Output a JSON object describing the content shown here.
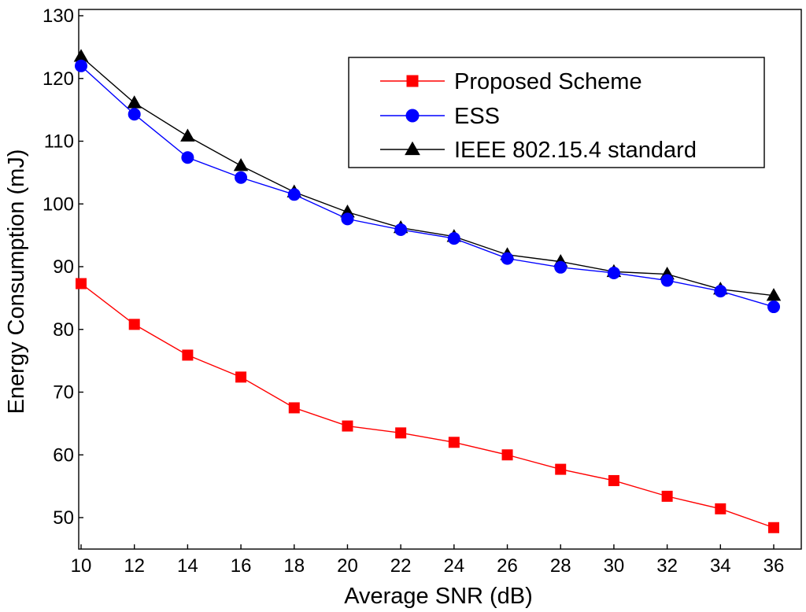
{
  "chart_data": {
    "type": "line",
    "title": "",
    "xlabel": "Average SNR (dB)",
    "ylabel": "Energy Consumption (mJ)",
    "xlim": [
      10,
      36
    ],
    "ylim": [
      45,
      130
    ],
    "x_ticks": [
      10,
      12,
      14,
      16,
      18,
      20,
      22,
      24,
      26,
      28,
      30,
      32,
      34,
      36
    ],
    "y_ticks": [
      50,
      60,
      70,
      80,
      90,
      100,
      110,
      120,
      130
    ],
    "x": [
      10,
      12,
      14,
      16,
      18,
      20,
      22,
      24,
      26,
      28,
      30,
      32,
      34,
      36
    ],
    "legend_position": "top-right",
    "grid": false,
    "series": [
      {
        "name": "Proposed Scheme",
        "color": "#ff0000",
        "marker": "square",
        "values": [
          87.3,
          80.8,
          75.9,
          72.4,
          67.5,
          64.6,
          63.5,
          62.0,
          60.0,
          57.7,
          55.9,
          53.4,
          51.4,
          48.4
        ]
      },
      {
        "name": "ESS",
        "color": "#0000ff",
        "marker": "circle",
        "values": [
          122.0,
          114.3,
          107.4,
          104.2,
          101.5,
          97.6,
          95.9,
          94.5,
          91.3,
          89.9,
          89.0,
          87.8,
          86.1,
          83.6
        ]
      },
      {
        "name": "IEEE 802.15.4 standard",
        "color": "#000000",
        "marker": "triangle",
        "values": [
          123.5,
          116.1,
          110.8,
          106.1,
          101.9,
          98.7,
          96.2,
          94.8,
          91.9,
          90.8,
          89.2,
          88.8,
          86.4,
          85.4
        ]
      }
    ]
  }
}
